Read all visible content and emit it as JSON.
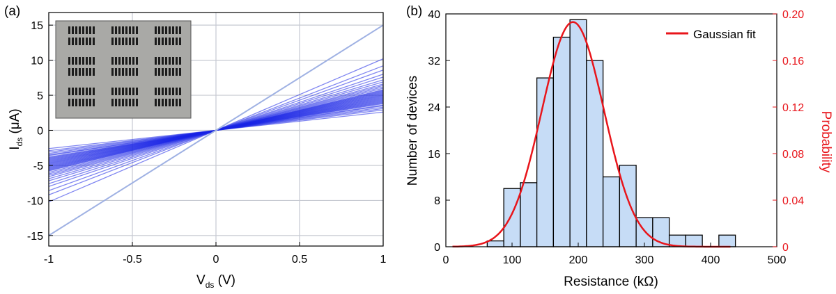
{
  "chart_data": [
    {
      "panel": "(a)",
      "type": "line",
      "xlabel_main": "V",
      "xlabel_sub": "ds",
      "xlabel_unit": " (V)",
      "ylabel_main": "I",
      "ylabel_sub": "ds",
      "ylabel_unit": " (μA)",
      "xlim": [
        -1,
        1
      ],
      "ylim": [
        -16.5,
        16.8
      ],
      "xticks": [
        -1,
        -0.5,
        0,
        0.5,
        1
      ],
      "xtick_labels": [
        "-1",
        "-0.5",
        "0",
        "0.5",
        "1"
      ],
      "yticks": [
        -15,
        -10,
        -5,
        0,
        5,
        10,
        15
      ],
      "ytick_labels": [
        "-15",
        "-10",
        "-5",
        "0",
        "5",
        "10",
        "15"
      ],
      "grid": true,
      "series_color": "#1a24e6",
      "reference_line_color": "#9fb1e3",
      "reference_line_slope": 15,
      "curve_slopes_uA_per_V": [
        2.6,
        2.9,
        3.1,
        3.3,
        3.5,
        3.6,
        3.8,
        3.9,
        4.0,
        4.1,
        4.2,
        4.3,
        4.4,
        4.5,
        4.6,
        4.7,
        4.8,
        4.9,
        5.0,
        5.1,
        5.2,
        5.3,
        5.4,
        5.5,
        5.6,
        5.7,
        5.8,
        6.0,
        6.2,
        6.4,
        6.6,
        6.9,
        7.2,
        7.6,
        8.0,
        8.6,
        9.2,
        10.2
      ],
      "inset": "photo of device array on chip (decorative)"
    },
    {
      "panel": "(b)",
      "type": "bar",
      "xlabel": "Resistance (kΩ)",
      "ylabel_left": "Number of devices",
      "ylabel_right": "Probability",
      "xlim": [
        0,
        500
      ],
      "ylim_left": [
        0,
        40
      ],
      "ylim_right": [
        0,
        0.2
      ],
      "xticks": [
        0,
        100,
        200,
        300,
        400,
        500
      ],
      "xtick_labels": [
        "0",
        "100",
        "200",
        "300",
        "400",
        "500"
      ],
      "yticks_left": [
        0,
        8,
        16,
        24,
        32,
        40
      ],
      "ytick_labels_left": [
        "0",
        "8",
        "16",
        "24",
        "32",
        "40"
      ],
      "yticks_right": [
        0,
        0.04,
        0.08,
        0.12,
        0.16,
        0.2
      ],
      "ytick_labels_right": [
        "0",
        "0.04",
        "0.08",
        "0.12",
        "0.16",
        "0.20"
      ],
      "bin_width": 25,
      "bin_starts": [
        62.5,
        87.5,
        112.5,
        137.5,
        162.5,
        187.5,
        212.5,
        237.5,
        262.5,
        287.5,
        312.5,
        337.5,
        362.5,
        387.5,
        412.5
      ],
      "counts": [
        1,
        10,
        11,
        29,
        36,
        39,
        32,
        12,
        14,
        5,
        5,
        2,
        2,
        0,
        2
      ],
      "bar_fill": "#c6dcf6",
      "fit": {
        "name": "Gaussian fit",
        "color": "#e8151b",
        "mean": 192,
        "sigma": 47,
        "peak_probability": 0.193
      },
      "legend_position": "top-right",
      "right_axis_color": "#e8151b"
    }
  ]
}
